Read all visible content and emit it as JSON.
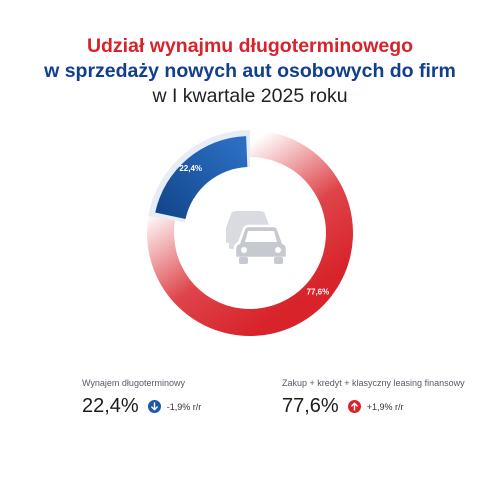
{
  "header": {
    "title_line1": "Udział wynajmu długoterminowego",
    "title_line2": "w sprzedaży nowych aut osobowych do firm",
    "title_line3": "w I kwartale 2025 roku"
  },
  "chart_data": {
    "type": "pie",
    "categories": [
      "Wynajem długoterminowy",
      "Zakup + kredyt + klasyczny leasing finansowy"
    ],
    "values": [
      22.4,
      77.6
    ],
    "labels": [
      "22,4%",
      "77,6%"
    ],
    "colors": [
      "#1c58a8",
      "#d8232a"
    ]
  },
  "center_icon": "two-cars-icon",
  "legend": {
    "left": {
      "label": "Wynajem długoterminowy",
      "value": "22,4%",
      "change": "-1,9% r/r",
      "direction": "down",
      "icon": "arrow-down-icon",
      "color": "#1c58a8"
    },
    "right": {
      "label": "Zakup + kredyt + klasyczny leasing finansowy",
      "value": "77,6%",
      "change": "+1,9% r/r",
      "direction": "up",
      "icon": "arrow-up-icon",
      "color": "#d8232a"
    }
  }
}
